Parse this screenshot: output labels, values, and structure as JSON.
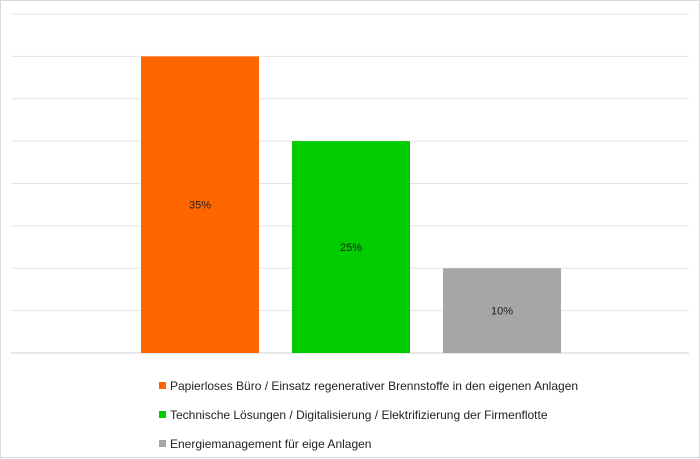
{
  "chart_data": {
    "type": "bar",
    "title": "",
    "xlabel": "",
    "ylabel": "",
    "ylim": [
      0,
      40
    ],
    "grid": true,
    "legend_position": "bottom",
    "categories": [
      "Papierloses Büro / Einsatz regenerativer Brennstoffe in den eigenen Anlagen",
      "Technische Lösungen / Digitalisierung / Elektrifizierung der Firmenflotte",
      "Energiemanagement für eige Anlagen"
    ],
    "values": [
      35,
      25,
      10
    ],
    "data_labels": [
      "35%",
      "25%",
      "10%"
    ],
    "colors": [
      "#ff6600",
      "#00cc00",
      "#a6a6a6"
    ]
  }
}
